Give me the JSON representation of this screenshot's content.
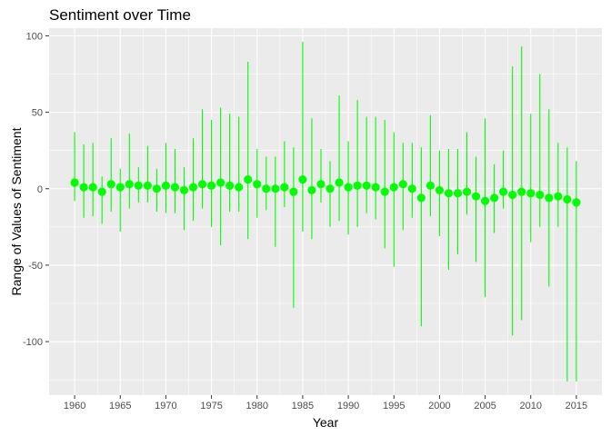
{
  "chart_data": {
    "type": "scatter",
    "title": "Sentiment over Time",
    "xlabel": "Year",
    "ylabel": "Range of Values of Sentiment",
    "xlim": [
      1957.2,
      2017.8
    ],
    "ylim": [
      -135,
      105
    ],
    "xticks": [
      1960,
      1965,
      1970,
      1975,
      1980,
      1985,
      1990,
      1995,
      2000,
      2005,
      2010,
      2015
    ],
    "yticks": [
      -100,
      -50,
      0,
      50,
      100
    ],
    "ytick_labels": [
      "-100",
      "-50",
      "0",
      "50",
      "100"
    ],
    "grid": true,
    "legend": "none",
    "colors": {
      "point": "#00ff00",
      "range": "#00ff00",
      "panel": "#ebebeb",
      "grid": "#ffffff"
    },
    "series": [
      {
        "x": [
          1960,
          1961,
          1962,
          1963,
          1964,
          1965,
          1966,
          1967,
          1968,
          1969,
          1970,
          1971,
          1972,
          1973,
          1974,
          1975,
          1976,
          1977,
          1978,
          1979,
          1980,
          1981,
          1982,
          1983,
          1984,
          1985,
          1986,
          1987,
          1988,
          1989,
          1990,
          1991,
          1992,
          1993,
          1994,
          1995,
          1996,
          1997,
          1998,
          1999,
          2000,
          2001,
          2002,
          2003,
          2004,
          2005,
          2006,
          2007,
          2008,
          2009,
          2010,
          2011,
          2012,
          2013,
          2014,
          2015
        ],
        "y": [
          4,
          1,
          1,
          -2,
          3,
          1,
          3,
          2,
          2,
          0,
          2,
          1,
          -1,
          1,
          3,
          2,
          4,
          2,
          1,
          6,
          3,
          0,
          0,
          1,
          -2,
          6,
          -1,
          3,
          0,
          4,
          1,
          2,
          2,
          1,
          -2,
          1,
          3,
          0,
          -6,
          2,
          -1,
          -3,
          -3,
          -2,
          -5,
          -8,
          -6,
          -2,
          -4,
          -2,
          -3,
          -4,
          -6,
          -5,
          -7,
          -9
        ],
        "ymin": [
          -8,
          -19,
          -18,
          -23,
          -15,
          -28,
          -13,
          -9,
          -9,
          -15,
          -16,
          -16,
          -27,
          -21,
          -13,
          -25,
          -37,
          -15,
          -15,
          -33,
          -19,
          -14,
          -38,
          -12,
          -78,
          -28,
          -33,
          -9,
          -25,
          -21,
          -30,
          -25,
          -16,
          -20,
          -39,
          -51,
          -27,
          -19,
          -90,
          -18,
          -31,
          -53,
          -43,
          -17,
          -48,
          -71,
          -29,
          -13,
          -96,
          -86,
          -35,
          -25,
          -64,
          -25,
          -126,
          -126
        ],
        "ymax": [
          37,
          29,
          30,
          8,
          33,
          13,
          36,
          14,
          28,
          13,
          30,
          26,
          14,
          33,
          52,
          45,
          53,
          49,
          47,
          83,
          26,
          21,
          21,
          31,
          27,
          96,
          46,
          26,
          18,
          61,
          31,
          58,
          47,
          47,
          45,
          37,
          30,
          30,
          27,
          48,
          25,
          26,
          26,
          37,
          21,
          46,
          16,
          25,
          80,
          93,
          49,
          75,
          52,
          30,
          27,
          18
        ]
      }
    ]
  }
}
